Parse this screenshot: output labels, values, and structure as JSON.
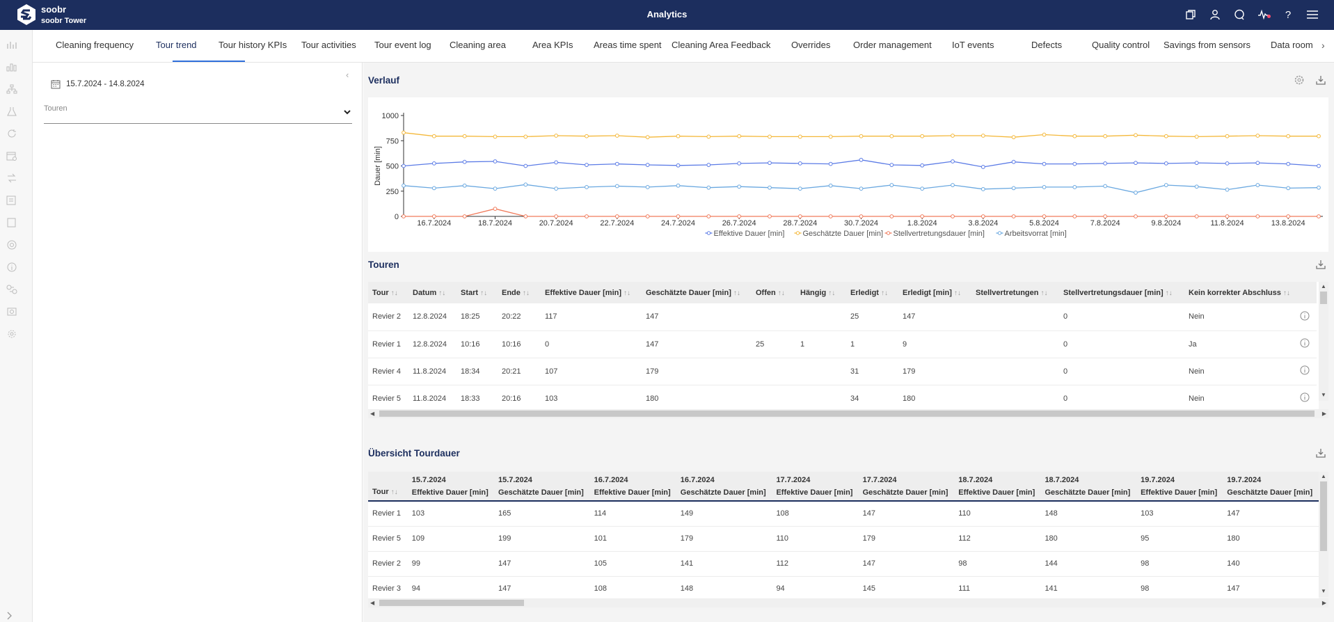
{
  "header": {
    "brand_name": "soobr",
    "brand_sub": "soobr Tower",
    "app_title": "Analytics",
    "icons": [
      "copy-icon",
      "user-icon",
      "chat-icon",
      "pulse-icon",
      "help-icon",
      "menu-icon"
    ]
  },
  "rail": {
    "icons": [
      "bar-chart-icon",
      "column-chart-icon",
      "hierarchy-icon",
      "flask-icon",
      "refresh-icon",
      "calendar-settings-icon",
      "swap-icon",
      "checklist-icon",
      "square-icon",
      "radar-icon",
      "info-icon",
      "transfer-icon",
      "gear-cog-icon",
      "settings-icon"
    ]
  },
  "tabs": [
    {
      "label": "Cleaning frequency"
    },
    {
      "label": "Tour trend",
      "active": true
    },
    {
      "label": "Tour history KPIs"
    },
    {
      "label": "Tour activities"
    },
    {
      "label": "Tour event log"
    },
    {
      "label": "Cleaning area"
    },
    {
      "label": "Area KPIs"
    },
    {
      "label": "Areas time spent"
    },
    {
      "label": "Cleaning Area Feedback"
    },
    {
      "label": "Overrides"
    },
    {
      "label": "Order management"
    },
    {
      "label": "IoT events"
    },
    {
      "label": "Defects"
    },
    {
      "label": "Quality control"
    },
    {
      "label": "Savings from sensors"
    },
    {
      "label": "Data room"
    }
  ],
  "filters": {
    "date_range": "15.7.2024 - 14.8.2024",
    "touren_label": "Touren"
  },
  "verlauf": {
    "title": "Verlauf"
  },
  "chart_data": {
    "type": "line",
    "title": "",
    "ylabel": "Dauer [min]",
    "xlabel": "",
    "ylim": [
      0,
      1000
    ],
    "yticks": [
      0,
      250,
      500,
      750,
      1000
    ],
    "x_ticks": [
      "16.7.2024",
      "18.7.2024",
      "20.7.2024",
      "22.7.2024",
      "24.7.2024",
      "26.7.2024",
      "28.7.2024",
      "30.7.2024",
      "1.8.2024",
      "3.8.2024",
      "5.8.2024",
      "7.8.2024",
      "9.8.2024",
      "11.8.2024",
      "13.8.2024"
    ],
    "x": [
      "15.7.2024",
      "16.7.2024",
      "17.7.2024",
      "18.7.2024",
      "19.7.2024",
      "20.7.2024",
      "21.7.2024",
      "22.7.2024",
      "23.7.2024",
      "24.7.2024",
      "25.7.2024",
      "26.7.2024",
      "27.7.2024",
      "28.7.2024",
      "29.7.2024",
      "30.7.2024",
      "31.7.2024",
      "1.8.2024",
      "2.8.2024",
      "3.8.2024",
      "4.8.2024",
      "5.8.2024",
      "6.8.2024",
      "7.8.2024",
      "8.8.2024",
      "9.8.2024",
      "10.8.2024",
      "11.8.2024",
      "12.8.2024",
      "13.8.2024",
      "14.8.2024"
    ],
    "legend_position": "bottom",
    "series": [
      {
        "name": "Effektive Dauer [min]",
        "color": "#5b7be6",
        "values": [
          500,
          525,
          540,
          545,
          500,
          535,
          510,
          520,
          510,
          505,
          510,
          525,
          530,
          525,
          520,
          560,
          510,
          505,
          545,
          490,
          540,
          520,
          520,
          525,
          530,
          525,
          530,
          525,
          530,
          520,
          500
        ]
      },
      {
        "name": "Geschätzte Dauer [min]",
        "color": "#f4b83a",
        "values": [
          830,
          795,
          795,
          790,
          790,
          800,
          795,
          800,
          785,
          795,
          790,
          795,
          790,
          790,
          790,
          795,
          795,
          795,
          800,
          800,
          785,
          810,
          795,
          795,
          805,
          795,
          790,
          795,
          800,
          795,
          795
        ]
      },
      {
        "name": "Stellvertretungsdauer [min]",
        "color": "#f07a5a",
        "values": [
          0,
          0,
          0,
          75,
          0,
          0,
          0,
          0,
          0,
          0,
          0,
          0,
          0,
          0,
          0,
          0,
          0,
          0,
          0,
          0,
          0,
          0,
          0,
          0,
          0,
          0,
          0,
          0,
          0,
          0,
          0
        ]
      },
      {
        "name": "Arbeitsvorrat [min]",
        "color": "#6aa8e0",
        "values": [
          305,
          280,
          305,
          275,
          315,
          275,
          290,
          300,
          290,
          305,
          285,
          295,
          285,
          275,
          305,
          275,
          310,
          275,
          310,
          270,
          280,
          290,
          290,
          300,
          235,
          310,
          295,
          265,
          310,
          280,
          285
        ]
      }
    ]
  },
  "touren": {
    "title": "Touren",
    "columns": [
      "Tour",
      "Datum",
      "Start",
      "Ende",
      "Effektive Dauer [min]",
      "Geschätzte Dauer [min]",
      "Offen",
      "Hängig",
      "Erledigt",
      "Erledigt [min]",
      "Stellvertretungen",
      "Stellvertretungsdauer [min]",
      "Kein korrekter Abschluss"
    ],
    "rows": [
      [
        "Revier 2",
        "12.8.2024",
        "18:25",
        "20:22",
        "117",
        "147",
        "",
        "",
        "25",
        "147",
        "",
        "0",
        "Nein"
      ],
      [
        "Revier 1",
        "12.8.2024",
        "10:16",
        "10:16",
        "0",
        "147",
        "25",
        "1",
        "1",
        "9",
        "",
        "0",
        "Ja"
      ],
      [
        "Revier 4",
        "11.8.2024",
        "18:34",
        "20:21",
        "107",
        "179",
        "",
        "",
        "31",
        "179",
        "",
        "0",
        "Nein"
      ],
      [
        "Revier 5",
        "11.8.2024",
        "18:33",
        "20:16",
        "103",
        "180",
        "",
        "",
        "34",
        "180",
        "",
        "0",
        "Nein"
      ]
    ]
  },
  "uebersicht": {
    "title": "Übersicht Tourdauer",
    "tour_header": "Tour",
    "columns": [
      {
        "date": "15.7.2024",
        "kind": "Effektive Dauer [min]"
      },
      {
        "date": "15.7.2024",
        "kind": "Geschätzte Dauer [min]"
      },
      {
        "date": "16.7.2024",
        "kind": "Effektive Dauer [min]"
      },
      {
        "date": "16.7.2024",
        "kind": "Geschätzte Dauer [min]"
      },
      {
        "date": "17.7.2024",
        "kind": "Effektive Dauer [min]"
      },
      {
        "date": "17.7.2024",
        "kind": "Geschätzte Dauer [min]"
      },
      {
        "date": "18.7.2024",
        "kind": "Effektive Dauer [min]"
      },
      {
        "date": "18.7.2024",
        "kind": "Geschätzte Dauer [min]"
      },
      {
        "date": "19.7.2024",
        "kind": "Effektive Dauer [min]"
      },
      {
        "date": "19.7.2024",
        "kind": "Geschätzte Dauer [min]"
      }
    ],
    "rows": [
      [
        "Revier 1",
        "103",
        "165",
        "114",
        "149",
        "108",
        "147",
        "110",
        "148",
        "103",
        "147"
      ],
      [
        "Revier 5",
        "109",
        "199",
        "101",
        "179",
        "110",
        "179",
        "112",
        "180",
        "95",
        "180"
      ],
      [
        "Revier 2",
        "99",
        "147",
        "105",
        "141",
        "112",
        "147",
        "98",
        "144",
        "98",
        "140"
      ],
      [
        "Revier 3",
        "94",
        "147",
        "108",
        "148",
        "94",
        "145",
        "111",
        "141",
        "98",
        "147"
      ]
    ]
  }
}
